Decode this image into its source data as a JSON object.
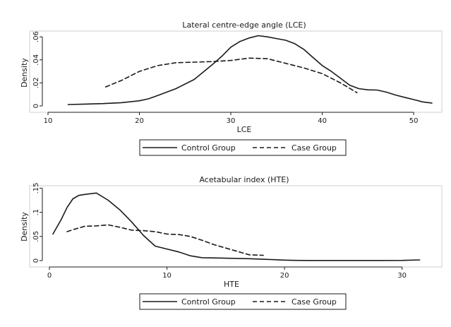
{
  "chart_data": [
    {
      "type": "line",
      "title": "Lateral centre-edge angle (LCE)",
      "xlabel": "LCE",
      "ylabel": "Density",
      "xlim": [
        10,
        52
      ],
      "ylim": [
        0,
        0.065
      ],
      "xticks": [
        10,
        20,
        30,
        40,
        50
      ],
      "yticks": [
        0,
        0.02,
        0.04,
        0.06
      ],
      "ytick_labels": [
        "0",
        ".02",
        ".04",
        ".06"
      ],
      "grid": false,
      "legend_position": "bottom",
      "series": [
        {
          "name": "Control Group",
          "style": "solid",
          "x": [
            12.2,
            14,
            16,
            18,
            20,
            21,
            22,
            24,
            26,
            28,
            29,
            30,
            31,
            32,
            33,
            34,
            35,
            36,
            37,
            38,
            39,
            40,
            41,
            42,
            43,
            44,
            45,
            46,
            47,
            48,
            49,
            50,
            51,
            52
          ],
          "y": [
            0.0012,
            0.0016,
            0.002,
            0.0028,
            0.0045,
            0.0062,
            0.009,
            0.015,
            0.023,
            0.036,
            0.043,
            0.051,
            0.056,
            0.059,
            0.061,
            0.06,
            0.0585,
            0.057,
            0.054,
            0.049,
            0.042,
            0.035,
            0.03,
            0.024,
            0.018,
            0.015,
            0.014,
            0.0138,
            0.012,
            0.0095,
            0.0075,
            0.0055,
            0.0035,
            0.0025
          ]
        },
        {
          "name": "Case Group",
          "style": "dashed",
          "x": [
            16.3,
            18,
            20,
            22,
            24,
            26,
            28,
            30,
            32,
            34,
            36,
            38,
            40,
            42,
            43.8
          ],
          "y": [
            0.0165,
            0.022,
            0.03,
            0.035,
            0.0375,
            0.038,
            0.0385,
            0.0395,
            0.0415,
            0.041,
            0.037,
            0.033,
            0.028,
            0.02,
            0.0115
          ]
        }
      ]
    },
    {
      "type": "line",
      "title": "Acetabular index (HTE)",
      "xlabel": "HTE",
      "ylabel": "Density",
      "xlim": [
        0,
        32
      ],
      "ylim": [
        0,
        0.155
      ],
      "xticks": [
        0,
        10,
        20,
        30
      ],
      "yticks": [
        0,
        0.05,
        0.1,
        0.15
      ],
      "ytick_labels": [
        "0",
        ".05",
        ".1",
        ".15"
      ],
      "grid": false,
      "legend_position": "bottom",
      "series": [
        {
          "name": "Control Group",
          "style": "solid",
          "x": [
            0.3,
            1,
            1.5,
            2,
            2.5,
            3,
            4,
            5,
            6,
            7,
            8,
            9,
            10,
            11,
            12,
            13,
            14,
            15,
            16,
            17,
            18,
            19,
            20,
            21,
            22,
            24,
            26,
            28,
            30,
            31.5
          ],
          "y": [
            0.055,
            0.085,
            0.11,
            0.128,
            0.135,
            0.137,
            0.14,
            0.125,
            0.105,
            0.08,
            0.052,
            0.03,
            0.024,
            0.018,
            0.01,
            0.006,
            0.0055,
            0.005,
            0.0045,
            0.004,
            0.003,
            0.002,
            0.001,
            0.0005,
            0.0003,
            0.0003,
            0.0003,
            0.0003,
            0.0005,
            0.0015
          ]
        },
        {
          "name": "Case Group",
          "style": "dashed",
          "x": [
            1.5,
            2,
            3,
            4,
            5,
            6,
            7,
            8,
            9,
            10,
            11,
            12,
            13,
            14,
            15,
            16,
            17,
            18.2
          ],
          "y": [
            0.06,
            0.064,
            0.071,
            0.072,
            0.074,
            0.069,
            0.063,
            0.062,
            0.06,
            0.055,
            0.054,
            0.05,
            0.042,
            0.033,
            0.026,
            0.019,
            0.012,
            0.011
          ]
        }
      ]
    }
  ]
}
